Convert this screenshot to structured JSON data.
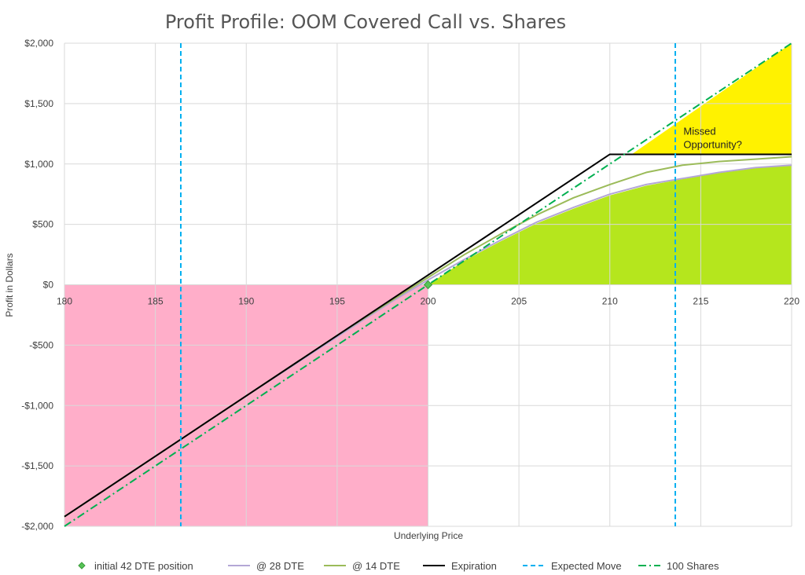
{
  "chart_data": {
    "type": "line",
    "title": "Profit Profile: OOM Covered Call vs. Shares",
    "xlabel": "Underlying Price",
    "ylabel": "Profit in Dollars",
    "xlim": [
      180,
      220
    ],
    "ylim": [
      -2000,
      2000
    ],
    "x_ticks": [
      180,
      185,
      190,
      195,
      200,
      205,
      210,
      215,
      220
    ],
    "x_tick_labels": [
      "180",
      "185",
      "190",
      "195",
      "200",
      "205",
      "210",
      "215",
      "220"
    ],
    "y_ticks": [
      -2000,
      -1500,
      -1000,
      -500,
      0,
      500,
      1000,
      1500,
      2000
    ],
    "y_tick_labels": [
      "-$2,000",
      "-$1,500",
      "-$1,000",
      "-$500",
      "$0",
      "$500",
      "$1,000",
      "$1,500",
      "$2,000"
    ],
    "grid": true,
    "legend_position": "bottom",
    "colors": {
      "pink_area": "#ffaec9",
      "green_area": "#b5e61d",
      "yellow_area": "#fff200",
      "initial": "#57c457",
      "dte28": "#b4a7d6",
      "dte14": "#9bbb59",
      "expiration": "#000000",
      "expected_move": "#00b0f0",
      "shares": "#00b050",
      "gridline": "#d9d9d9"
    },
    "series": [
      {
        "name": "initial 42 DTE position",
        "kind": "marker",
        "points": [
          [
            200,
            0
          ]
        ]
      },
      {
        "name": "@ 28 DTE",
        "kind": "line",
        "x": [
          180,
          185,
          190,
          195,
          198,
          200,
          202,
          204,
          206,
          208,
          210,
          212,
          214,
          216,
          218,
          220
        ],
        "y": [
          -1920,
          -1420,
          -920,
          -430,
          -140,
          40,
          210,
          370,
          520,
          640,
          750,
          830,
          880,
          930,
          970,
          990
        ]
      },
      {
        "name": "@ 14 DTE",
        "kind": "line",
        "x": [
          180,
          185,
          190,
          195,
          198,
          200,
          202,
          204,
          206,
          208,
          210,
          212,
          214,
          216,
          218,
          220
        ],
        "y": [
          -1920,
          -1420,
          -920,
          -420,
          -130,
          60,
          250,
          420,
          580,
          720,
          830,
          930,
          990,
          1020,
          1040,
          1060
        ]
      },
      {
        "name": "Expiration",
        "kind": "line",
        "x": [
          180,
          210,
          220
        ],
        "y": [
          -1920,
          1080,
          1080
        ]
      },
      {
        "name": "Expected Move",
        "kind": "vline",
        "x": [
          186.4,
          213.6
        ]
      },
      {
        "name": "100 Shares",
        "kind": "line",
        "x": [
          180,
          220
        ],
        "y": [
          -2000,
          2000
        ]
      }
    ],
    "areas": {
      "pink": {
        "y_top": 0,
        "x_from": 180,
        "x_to": 200
      },
      "green_boundary": [
        [
          200,
          0
        ],
        [
          202,
          200
        ],
        [
          204,
          360
        ],
        [
          206,
          510
        ],
        [
          208,
          630
        ],
        [
          210,
          740
        ],
        [
          212,
          820
        ],
        [
          214,
          875
        ],
        [
          216,
          925
        ],
        [
          218,
          965
        ],
        [
          220,
          990
        ]
      ],
      "yellow": [
        [
          211.2,
          1080
        ],
        [
          220,
          1080
        ],
        [
          220,
          2000
        ]
      ]
    },
    "annotations": [
      {
        "text_lines": [
          "Missed",
          "Opportunity?"
        ],
        "x": 215,
        "y": 1320
      }
    ]
  }
}
